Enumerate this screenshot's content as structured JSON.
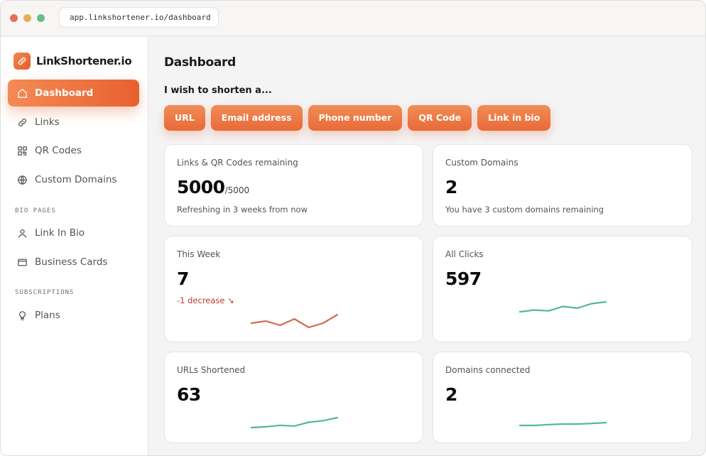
{
  "browser": {
    "url": "app.linkshortener.io/dashboard"
  },
  "brand": {
    "name": "LinkShortener.io",
    "logo_icon": "link-icon"
  },
  "sidebar": {
    "items": [
      {
        "label": "Dashboard",
        "icon": "home-icon",
        "active": true
      },
      {
        "label": "Links",
        "icon": "link-icon"
      },
      {
        "label": "QR Codes",
        "icon": "qr-code-icon"
      }
    ],
    "custom_domains": {
      "label": "Custom Domains",
      "icon": "globe-icon"
    },
    "bio_section_label": "BIO PAGES",
    "bio_items": [
      {
        "label": "Link In Bio",
        "icon": "user-icon"
      },
      {
        "label": "Business Cards",
        "icon": "card-icon"
      }
    ],
    "subscriptions_section_label": "SUBSCRIPTIONS",
    "subscription_items": [
      {
        "label": "Plans",
        "icon": "lightbulb-icon"
      }
    ]
  },
  "main": {
    "title": "Dashboard",
    "shorten_prompt": "I wish to shorten a...",
    "shorten_options": [
      "URL",
      "Email address",
      "Phone number",
      "QR Code",
      "Link in bio"
    ]
  },
  "cards": {
    "remaining": {
      "label": "Links & QR Codes remaining",
      "value": "5000",
      "total": "/5000",
      "note": "Refreshing in 3 weeks from now"
    },
    "custom_domains": {
      "label": "Custom Domains",
      "value": "2",
      "note": "You have 3 custom domains remaining"
    },
    "this_week": {
      "label": "This Week",
      "value": "7",
      "note": "-1 decrease ↘",
      "trend": [
        6,
        7,
        5,
        8,
        4,
        6,
        10
      ]
    },
    "all_clicks": {
      "label": "All Clicks",
      "value": "597",
      "trend": [
        3,
        5,
        4,
        9,
        7,
        12,
        14
      ]
    },
    "urls_shortened": {
      "label": "URLs Shortened",
      "value": "63",
      "trend": [
        2,
        3,
        5,
        4,
        9,
        11,
        15
      ]
    },
    "domains_connected": {
      "label": "Domains connected",
      "value": "2",
      "trend": [
        5,
        5,
        5.3,
        5.5,
        5.5,
        5.7,
        6
      ]
    }
  },
  "colors": {
    "accent": "#ea6a37",
    "trend_down": "#d46a52",
    "trend_up": "#4fb89a"
  }
}
